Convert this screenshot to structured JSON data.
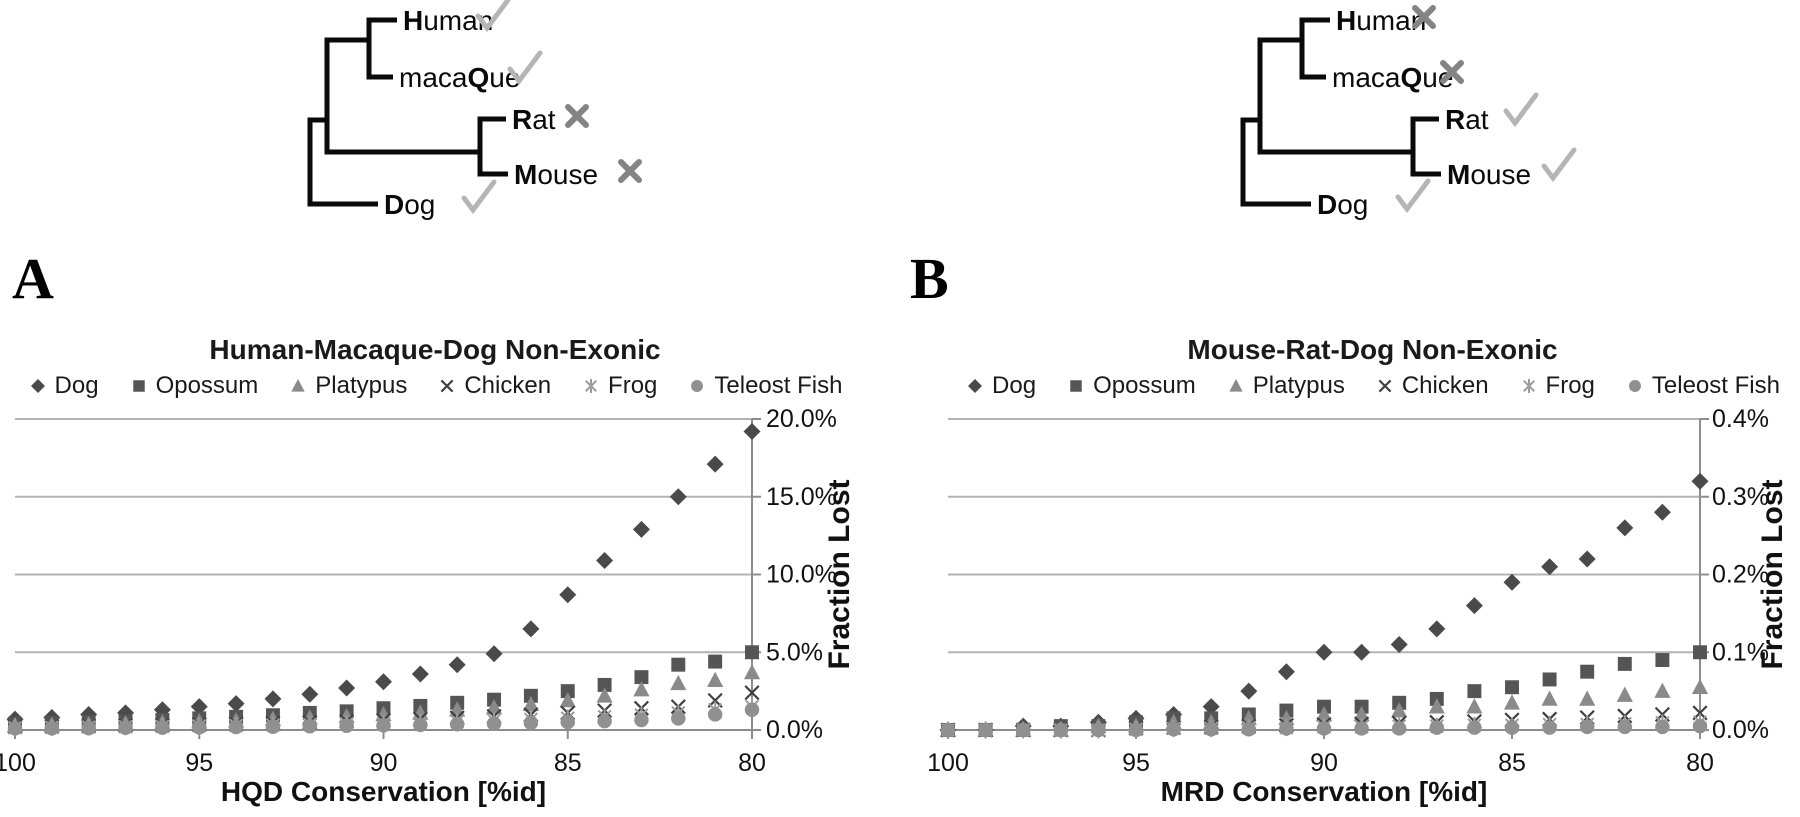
{
  "figure": {
    "panel_a_label": "A",
    "panel_b_label": "B"
  },
  "colors": {
    "check": "#b5b5b5",
    "cross": "#848484",
    "gridline": "#b3b3b3",
    "axis": "#8c8c8c",
    "tree_line": "#0a0a0a",
    "text": "#1a1a1a"
  },
  "trees": [
    {
      "id": "hqd-tree",
      "taxa": [
        {
          "name": "Human",
          "name_parts": [
            [
              "H",
              true
            ],
            [
              "uman",
              false
            ]
          ],
          "status": "check"
        },
        {
          "name": "macaQue",
          "name_parts": [
            [
              "maca",
              false
            ],
            [
              "Q",
              true
            ],
            [
              "ue",
              false
            ]
          ],
          "status": "check"
        },
        {
          "name": "Rat",
          "name_parts": [
            [
              "R",
              true
            ],
            [
              "at",
              false
            ]
          ],
          "status": "cross"
        },
        {
          "name": "Mouse",
          "name_parts": [
            [
              "M",
              true
            ],
            [
              "ouse",
              false
            ]
          ],
          "status": "cross"
        },
        {
          "name": "Dog",
          "name_parts": [
            [
              "D",
              true
            ],
            [
              "og",
              false
            ]
          ],
          "status": "check"
        }
      ]
    },
    {
      "id": "mrd-tree",
      "taxa": [
        {
          "name": "Human",
          "name_parts": [
            [
              "H",
              true
            ],
            [
              "uman",
              false
            ]
          ],
          "status": "cross"
        },
        {
          "name": "macaQue",
          "name_parts": [
            [
              "maca",
              false
            ],
            [
              "Q",
              true
            ],
            [
              "ue",
              false
            ]
          ],
          "status": "cross"
        },
        {
          "name": "Rat",
          "name_parts": [
            [
              "R",
              true
            ],
            [
              "at",
              false
            ]
          ],
          "status": "check"
        },
        {
          "name": "Mouse",
          "name_parts": [
            [
              "M",
              true
            ],
            [
              "ouse",
              false
            ]
          ],
          "status": "check"
        },
        {
          "name": "Dog",
          "name_parts": [
            [
              "D",
              true
            ],
            [
              "og",
              false
            ]
          ],
          "status": "check"
        }
      ]
    }
  ],
  "chart_data": [
    {
      "type": "scatter",
      "panel": "A",
      "title": "Human-Macaque-Dog Non-Exonic",
      "xlabel": "HQD Conservation [%id]",
      "ylabel": "Fraction Lost",
      "x_axis_reversed": true,
      "xlim": [
        100,
        80
      ],
      "ylim": [
        0,
        20
      ],
      "x_ticks": [
        100,
        95,
        90,
        85,
        80
      ],
      "y_ticks": [
        {
          "value": 20,
          "label": "20.0%"
        },
        {
          "value": 15,
          "label": "15.0%"
        },
        {
          "value": 10,
          "label": "10.0%"
        },
        {
          "value": 5,
          "label": "5.0%"
        },
        {
          "value": 0,
          "label": "0.0%"
        }
      ],
      "legend_position": "top",
      "grid": true,
      "x": [
        100,
        99,
        98,
        97,
        96,
        95,
        94,
        93,
        92,
        91,
        90,
        89,
        88,
        87,
        86,
        85,
        84,
        83,
        82,
        81,
        80
      ],
      "series": [
        {
          "name": "Dog",
          "marker": "diamond",
          "color": "#4a4a4a",
          "values": [
            0.7,
            0.8,
            1.0,
            1.1,
            1.3,
            1.5,
            1.7,
            2.0,
            2.3,
            2.7,
            3.1,
            3.6,
            4.2,
            4.9,
            6.5,
            8.7,
            10.9,
            12.9,
            15.0,
            17.1,
            19.2
          ]
        },
        {
          "name": "Opossum",
          "marker": "square",
          "color": "#555555",
          "values": [
            0.4,
            0.45,
            0.5,
            0.55,
            0.65,
            0.75,
            0.85,
            0.95,
            1.1,
            1.2,
            1.4,
            1.55,
            1.75,
            1.95,
            2.2,
            2.5,
            2.9,
            3.4,
            4.2,
            4.4,
            5.0
          ]
        },
        {
          "name": "Platypus",
          "marker": "triangle",
          "color": "#8a8a8a",
          "values": [
            0.3,
            0.33,
            0.37,
            0.42,
            0.48,
            0.54,
            0.6,
            0.7,
            0.78,
            0.88,
            1.0,
            1.1,
            1.3,
            1.45,
            1.65,
            1.9,
            2.2,
            2.6,
            3.0,
            3.2,
            3.7
          ]
        },
        {
          "name": "Chicken",
          "marker": "x",
          "color": "#3f3f3f",
          "values": [
            0.2,
            0.22,
            0.25,
            0.28,
            0.31,
            0.35,
            0.39,
            0.44,
            0.49,
            0.55,
            0.62,
            0.7,
            0.78,
            0.88,
            0.98,
            1.1,
            1.25,
            1.4,
            1.5,
            1.9,
            2.4
          ]
        },
        {
          "name": "Frog",
          "marker": "star",
          "color": "#9c9c9c",
          "values": [
            0.15,
            0.17,
            0.19,
            0.21,
            0.23,
            0.26,
            0.29,
            0.32,
            0.36,
            0.4,
            0.44,
            0.49,
            0.55,
            0.61,
            0.68,
            0.76,
            0.85,
            0.95,
            1.1,
            1.3,
            1.5
          ]
        },
        {
          "name": "Teleost Fish",
          "marker": "circle",
          "color": "#909090",
          "values": [
            0.1,
            0.11,
            0.12,
            0.14,
            0.15,
            0.17,
            0.19,
            0.21,
            0.24,
            0.27,
            0.3,
            0.33,
            0.37,
            0.41,
            0.46,
            0.51,
            0.57,
            0.64,
            0.75,
            1.0,
            1.3
          ]
        }
      ]
    },
    {
      "type": "scatter",
      "panel": "B",
      "title": "Mouse-Rat-Dog Non-Exonic",
      "xlabel": "MRD Conservation [%id]",
      "ylabel": "Fraction Lost",
      "x_axis_reversed": true,
      "xlim": [
        100,
        80
      ],
      "ylim": [
        0,
        0.4
      ],
      "x_ticks": [
        100,
        95,
        90,
        85,
        80
      ],
      "y_ticks": [
        {
          "value": 0.4,
          "label": "0.4%"
        },
        {
          "value": 0.3,
          "label": "0.3%"
        },
        {
          "value": 0.2,
          "label": "0.2%"
        },
        {
          "value": 0.1,
          "label": "0.1%"
        },
        {
          "value": 0,
          "label": "0.0%"
        }
      ],
      "legend_position": "top",
      "grid": true,
      "x": [
        100,
        99,
        98,
        97,
        96,
        95,
        94,
        93,
        92,
        91,
        90,
        89,
        88,
        87,
        86,
        85,
        84,
        83,
        82,
        81,
        80
      ],
      "series": [
        {
          "name": "Dog",
          "marker": "diamond",
          "color": "#4a4a4a",
          "values": [
            0.0,
            0.0,
            0.005,
            0.005,
            0.01,
            0.015,
            0.02,
            0.03,
            0.05,
            0.075,
            0.1,
            0.1,
            0.11,
            0.13,
            0.16,
            0.19,
            0.21,
            0.22,
            0.26,
            0.28,
            0.32
          ]
        },
        {
          "name": "Opossum",
          "marker": "square",
          "color": "#555555",
          "values": [
            0.0,
            0.0,
            0.0,
            0.005,
            0.005,
            0.01,
            0.015,
            0.015,
            0.02,
            0.025,
            0.03,
            0.03,
            0.035,
            0.04,
            0.05,
            0.055,
            0.065,
            0.075,
            0.085,
            0.09,
            0.1
          ]
        },
        {
          "name": "Platypus",
          "marker": "triangle",
          "color": "#8a8a8a",
          "values": [
            0.0,
            0.0,
            0.0,
            0.0,
            0.005,
            0.005,
            0.01,
            0.01,
            0.015,
            0.015,
            0.02,
            0.02,
            0.025,
            0.03,
            0.03,
            0.035,
            0.04,
            0.04,
            0.045,
            0.05,
            0.055
          ]
        },
        {
          "name": "Chicken",
          "marker": "x",
          "color": "#3f3f3f",
          "values": [
            0.0,
            0.0,
            0.0,
            0.0,
            0.0,
            0.002,
            0.003,
            0.004,
            0.005,
            0.006,
            0.007,
            0.008,
            0.009,
            0.01,
            0.011,
            0.013,
            0.014,
            0.016,
            0.018,
            0.02,
            0.022
          ]
        },
        {
          "name": "Frog",
          "marker": "star",
          "color": "#9c9c9c",
          "values": [
            0.0,
            0.0,
            0.0,
            0.0,
            0.0,
            0.001,
            0.002,
            0.002,
            0.003,
            0.003,
            0.004,
            0.004,
            0.005,
            0.005,
            0.006,
            0.006,
            0.007,
            0.007,
            0.008,
            0.009,
            0.01
          ]
        },
        {
          "name": "Teleost Fish",
          "marker": "circle",
          "color": "#909090",
          "values": [
            0.0,
            0.0,
            0.0,
            0.0,
            0.0,
            0.0,
            0.001,
            0.001,
            0.001,
            0.002,
            0.002,
            0.002,
            0.002,
            0.003,
            0.003,
            0.003,
            0.003,
            0.004,
            0.004,
            0.004,
            0.005
          ]
        }
      ]
    }
  ]
}
